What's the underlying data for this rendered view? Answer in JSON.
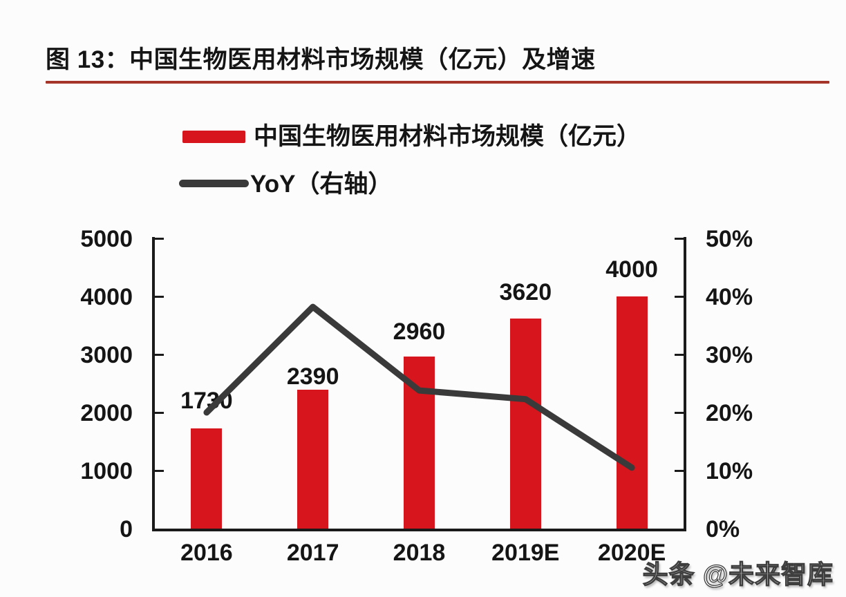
{
  "figure": {
    "title": "图 13：中国生物医用材料市场规模（亿元）及增速",
    "title_rule_color": "#a43528"
  },
  "legend": {
    "items": [
      {
        "label": "中国生物医用材料市场规模（亿元）",
        "swatch": "bar",
        "color": "#d6161c"
      },
      {
        "label": "YoY（右轴）",
        "swatch": "line",
        "color": "#3a3a3a"
      }
    ]
  },
  "watermark": {
    "text": "头条 @未来智库"
  },
  "chart_data": {
    "type": "bar",
    "title": "中国生物医用材料市场规模（亿元）及增速",
    "categories": [
      "2016",
      "2017",
      "2018",
      "2019E",
      "2020E"
    ],
    "series": [
      {
        "name": "中国生物医用材料市场规模（亿元）",
        "type": "bar",
        "axis": "left",
        "values": [
          1730,
          2390,
          2960,
          3620,
          4000
        ],
        "data_labels": [
          "1730",
          "2390",
          "2960",
          "3620",
          "4000"
        ],
        "color": "#d6161c"
      },
      {
        "name": "YoY（右轴）",
        "type": "line",
        "axis": "right",
        "values_percent": [
          20.0,
          38.2,
          23.8,
          22.3,
          10.5
        ],
        "color": "#3a3a3a"
      }
    ],
    "left_axis": {
      "min": 0,
      "max": 5000,
      "tick_labels": [
        "5000",
        "4000",
        "3000",
        "2000",
        "1000",
        "0"
      ]
    },
    "right_axis": {
      "min": 0,
      "max": 50,
      "tick_labels": [
        "50%",
        "40%",
        "30%",
        "20%",
        "10%",
        "0%"
      ]
    },
    "grid": false,
    "legend_position": "top-left",
    "label_center_offsets": [
      40,
      19,
      36,
      38,
      39
    ]
  }
}
